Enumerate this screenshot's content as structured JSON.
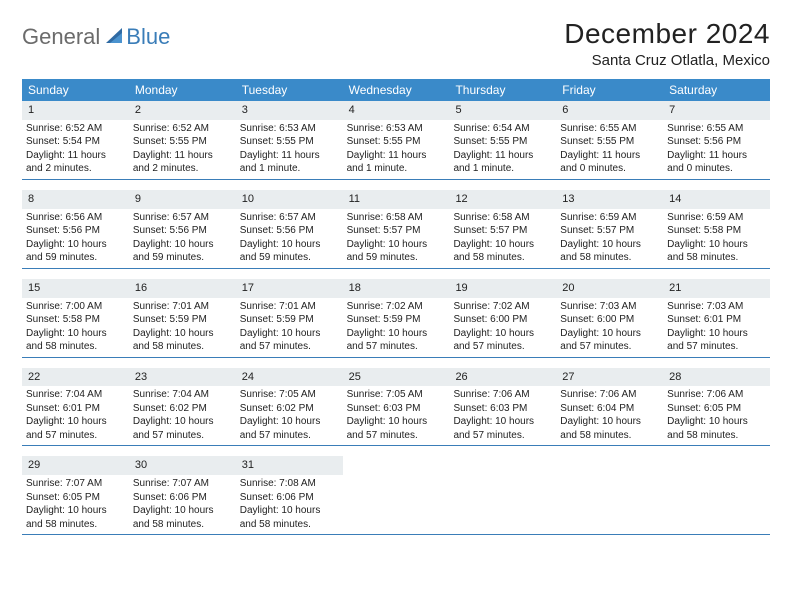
{
  "brand": {
    "general": "General",
    "blue": "Blue"
  },
  "title": "December 2024",
  "location": "Santa Cruz Otlatla, Mexico",
  "colors": {
    "header_bg": "#3a8ac9",
    "accent": "#3a7db8",
    "daynum_bg": "#e9edef",
    "text": "#222222",
    "page_bg": "#ffffff"
  },
  "days_of_week": [
    "Sunday",
    "Monday",
    "Tuesday",
    "Wednesday",
    "Thursday",
    "Friday",
    "Saturday"
  ],
  "weeks": [
    [
      {
        "n": "1",
        "sr": "Sunrise: 6:52 AM",
        "ss": "Sunset: 5:54 PM",
        "d1": "Daylight: 11 hours",
        "d2": "and 2 minutes."
      },
      {
        "n": "2",
        "sr": "Sunrise: 6:52 AM",
        "ss": "Sunset: 5:55 PM",
        "d1": "Daylight: 11 hours",
        "d2": "and 2 minutes."
      },
      {
        "n": "3",
        "sr": "Sunrise: 6:53 AM",
        "ss": "Sunset: 5:55 PM",
        "d1": "Daylight: 11 hours",
        "d2": "and 1 minute."
      },
      {
        "n": "4",
        "sr": "Sunrise: 6:53 AM",
        "ss": "Sunset: 5:55 PM",
        "d1": "Daylight: 11 hours",
        "d2": "and 1 minute."
      },
      {
        "n": "5",
        "sr": "Sunrise: 6:54 AM",
        "ss": "Sunset: 5:55 PM",
        "d1": "Daylight: 11 hours",
        "d2": "and 1 minute."
      },
      {
        "n": "6",
        "sr": "Sunrise: 6:55 AM",
        "ss": "Sunset: 5:55 PM",
        "d1": "Daylight: 11 hours",
        "d2": "and 0 minutes."
      },
      {
        "n": "7",
        "sr": "Sunrise: 6:55 AM",
        "ss": "Sunset: 5:56 PM",
        "d1": "Daylight: 11 hours",
        "d2": "and 0 minutes."
      }
    ],
    [
      {
        "n": "8",
        "sr": "Sunrise: 6:56 AM",
        "ss": "Sunset: 5:56 PM",
        "d1": "Daylight: 10 hours",
        "d2": "and 59 minutes."
      },
      {
        "n": "9",
        "sr": "Sunrise: 6:57 AM",
        "ss": "Sunset: 5:56 PM",
        "d1": "Daylight: 10 hours",
        "d2": "and 59 minutes."
      },
      {
        "n": "10",
        "sr": "Sunrise: 6:57 AM",
        "ss": "Sunset: 5:56 PM",
        "d1": "Daylight: 10 hours",
        "d2": "and 59 minutes."
      },
      {
        "n": "11",
        "sr": "Sunrise: 6:58 AM",
        "ss": "Sunset: 5:57 PM",
        "d1": "Daylight: 10 hours",
        "d2": "and 59 minutes."
      },
      {
        "n": "12",
        "sr": "Sunrise: 6:58 AM",
        "ss": "Sunset: 5:57 PM",
        "d1": "Daylight: 10 hours",
        "d2": "and 58 minutes."
      },
      {
        "n": "13",
        "sr": "Sunrise: 6:59 AM",
        "ss": "Sunset: 5:57 PM",
        "d1": "Daylight: 10 hours",
        "d2": "and 58 minutes."
      },
      {
        "n": "14",
        "sr": "Sunrise: 6:59 AM",
        "ss": "Sunset: 5:58 PM",
        "d1": "Daylight: 10 hours",
        "d2": "and 58 minutes."
      }
    ],
    [
      {
        "n": "15",
        "sr": "Sunrise: 7:00 AM",
        "ss": "Sunset: 5:58 PM",
        "d1": "Daylight: 10 hours",
        "d2": "and 58 minutes."
      },
      {
        "n": "16",
        "sr": "Sunrise: 7:01 AM",
        "ss": "Sunset: 5:59 PM",
        "d1": "Daylight: 10 hours",
        "d2": "and 58 minutes."
      },
      {
        "n": "17",
        "sr": "Sunrise: 7:01 AM",
        "ss": "Sunset: 5:59 PM",
        "d1": "Daylight: 10 hours",
        "d2": "and 57 minutes."
      },
      {
        "n": "18",
        "sr": "Sunrise: 7:02 AM",
        "ss": "Sunset: 5:59 PM",
        "d1": "Daylight: 10 hours",
        "d2": "and 57 minutes."
      },
      {
        "n": "19",
        "sr": "Sunrise: 7:02 AM",
        "ss": "Sunset: 6:00 PM",
        "d1": "Daylight: 10 hours",
        "d2": "and 57 minutes."
      },
      {
        "n": "20",
        "sr": "Sunrise: 7:03 AM",
        "ss": "Sunset: 6:00 PM",
        "d1": "Daylight: 10 hours",
        "d2": "and 57 minutes."
      },
      {
        "n": "21",
        "sr": "Sunrise: 7:03 AM",
        "ss": "Sunset: 6:01 PM",
        "d1": "Daylight: 10 hours",
        "d2": "and 57 minutes."
      }
    ],
    [
      {
        "n": "22",
        "sr": "Sunrise: 7:04 AM",
        "ss": "Sunset: 6:01 PM",
        "d1": "Daylight: 10 hours",
        "d2": "and 57 minutes."
      },
      {
        "n": "23",
        "sr": "Sunrise: 7:04 AM",
        "ss": "Sunset: 6:02 PM",
        "d1": "Daylight: 10 hours",
        "d2": "and 57 minutes."
      },
      {
        "n": "24",
        "sr": "Sunrise: 7:05 AM",
        "ss": "Sunset: 6:02 PM",
        "d1": "Daylight: 10 hours",
        "d2": "and 57 minutes."
      },
      {
        "n": "25",
        "sr": "Sunrise: 7:05 AM",
        "ss": "Sunset: 6:03 PM",
        "d1": "Daylight: 10 hours",
        "d2": "and 57 minutes."
      },
      {
        "n": "26",
        "sr": "Sunrise: 7:06 AM",
        "ss": "Sunset: 6:03 PM",
        "d1": "Daylight: 10 hours",
        "d2": "and 57 minutes."
      },
      {
        "n": "27",
        "sr": "Sunrise: 7:06 AM",
        "ss": "Sunset: 6:04 PM",
        "d1": "Daylight: 10 hours",
        "d2": "and 58 minutes."
      },
      {
        "n": "28",
        "sr": "Sunrise: 7:06 AM",
        "ss": "Sunset: 6:05 PM",
        "d1": "Daylight: 10 hours",
        "d2": "and 58 minutes."
      }
    ],
    [
      {
        "n": "29",
        "sr": "Sunrise: 7:07 AM",
        "ss": "Sunset: 6:05 PM",
        "d1": "Daylight: 10 hours",
        "d2": "and 58 minutes."
      },
      {
        "n": "30",
        "sr": "Sunrise: 7:07 AM",
        "ss": "Sunset: 6:06 PM",
        "d1": "Daylight: 10 hours",
        "d2": "and 58 minutes."
      },
      {
        "n": "31",
        "sr": "Sunrise: 7:08 AM",
        "ss": "Sunset: 6:06 PM",
        "d1": "Daylight: 10 hours",
        "d2": "and 58 minutes."
      },
      {
        "empty": true
      },
      {
        "empty": true
      },
      {
        "empty": true
      },
      {
        "empty": true
      }
    ]
  ]
}
